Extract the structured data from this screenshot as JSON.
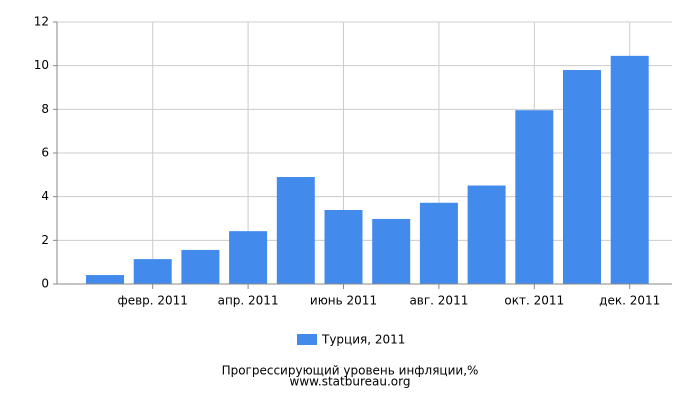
{
  "chart_data": {
    "type": "bar",
    "title": "Прогрессирующий уровень инфляции,%",
    "subtitle": "www.statbureau.org",
    "categories": [
      null,
      "февр. 2011",
      null,
      "апр. 2011",
      null,
      "июнь 2011",
      null,
      "авг. 2011",
      null,
      "окт. 2011",
      null,
      "дек. 2011"
    ],
    "series": [
      {
        "name": "Турция, 2011",
        "color": "#428bed",
        "values": [
          0.41,
          1.14,
          1.56,
          2.42,
          4.9,
          3.39,
          2.98,
          3.72,
          4.51,
          7.96,
          9.8,
          10.45
        ]
      }
    ],
    "ylim": [
      0,
      12
    ],
    "yticks": [
      0,
      2,
      4,
      6,
      8,
      10,
      12
    ],
    "grid": true
  }
}
